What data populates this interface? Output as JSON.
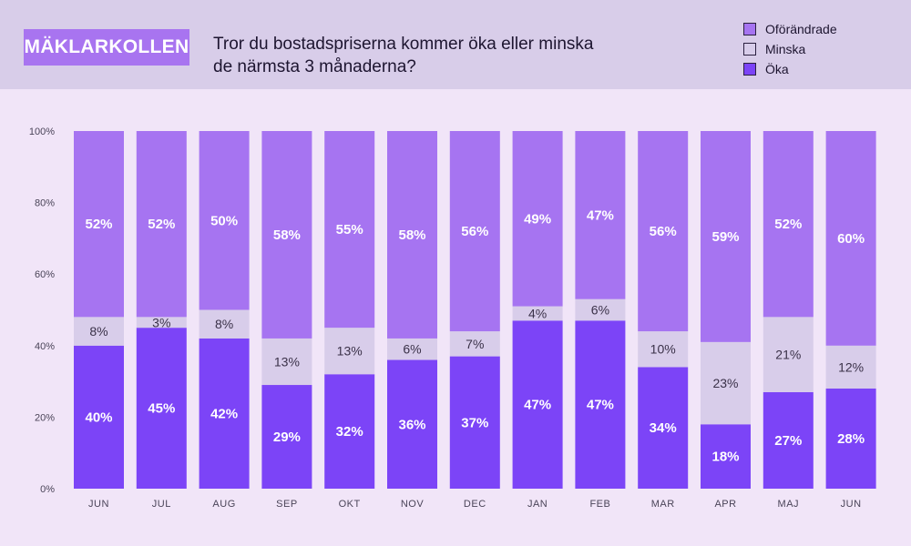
{
  "brand": "MÄKLARKOLLEN",
  "title_lines": [
    "Tror du bostadspriserna kommer öka eller minska",
    "de närmsta 3 månaderna?"
  ],
  "colors": {
    "header_bg": "#d8cde9",
    "page_bg": "#f1e5f8",
    "brand_bg": "#a874f0",
    "oforandrade": "#a674f1",
    "minska": "#d8cdea",
    "oka": "#7c44f7"
  },
  "legend": [
    {
      "label": "Oförändrade",
      "color": "#a674f1"
    },
    {
      "label": "Minska",
      "color": "#d8cdea"
    },
    {
      "label": "Öka",
      "color": "#7c44f7"
    }
  ],
  "chart_data": {
    "type": "bar",
    "stacked": true,
    "categories": [
      "JUN",
      "JUL",
      "AUG",
      "SEP",
      "OKT",
      "NOV",
      "DEC",
      "JAN",
      "FEB",
      "MAR",
      "APR",
      "MAJ",
      "JUN"
    ],
    "series": [
      {
        "name": "Öka",
        "values": [
          40,
          45,
          42,
          29,
          32,
          36,
          37,
          47,
          47,
          34,
          18,
          27,
          28
        ]
      },
      {
        "name": "Minska",
        "values": [
          8,
          3,
          8,
          13,
          13,
          6,
          7,
          4,
          6,
          10,
          23,
          21,
          12
        ]
      },
      {
        "name": "Oförändrade",
        "values": [
          52,
          52,
          50,
          58,
          55,
          58,
          56,
          49,
          47,
          56,
          59,
          52,
          60
        ]
      }
    ],
    "value_suffix": "%",
    "ylim": [
      0,
      100
    ],
    "yticks": [
      "0%",
      "20%",
      "40%",
      "60%",
      "80%",
      "100%"
    ],
    "ytick_values": [
      0,
      20,
      40,
      60,
      80,
      100
    ],
    "xlabel": "",
    "ylabel": "",
    "grid": false,
    "legend_position": "top-right"
  }
}
